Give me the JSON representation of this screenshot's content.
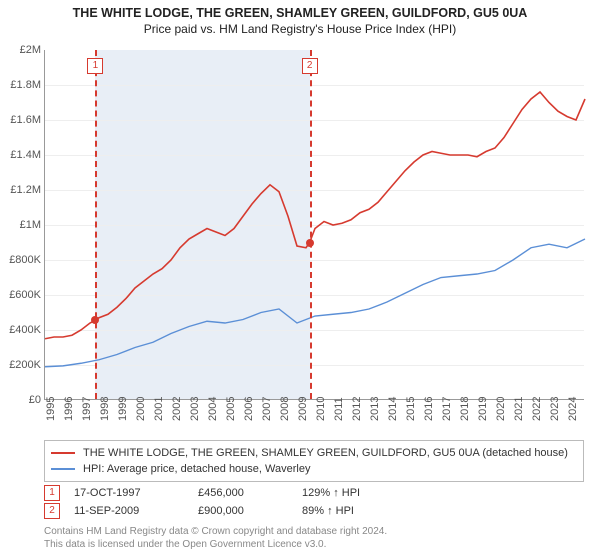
{
  "header": {
    "title_line1": "THE WHITE LODGE, THE GREEN, SHAMLEY GREEN, GUILDFORD, GU5 0UA",
    "title_line2": "Price paid vs. HM Land Registry's House Price Index (HPI)"
  },
  "chart": {
    "type": "line",
    "x_years": [
      1995,
      1996,
      1997,
      1998,
      1999,
      2000,
      2001,
      2002,
      2003,
      2004,
      2005,
      2006,
      2007,
      2008,
      2009,
      2010,
      2011,
      2012,
      2013,
      2014,
      2015,
      2016,
      2017,
      2018,
      2019,
      2020,
      2021,
      2022,
      2023,
      2024
    ],
    "xlim": [
      1995,
      2025
    ],
    "ylim": [
      0,
      2000000
    ],
    "ytick_step": 200000,
    "ytick_labels": [
      "£0",
      "£200K",
      "£400K",
      "£600K",
      "£800K",
      "£1M",
      "£1.2M",
      "£1.4M",
      "£1.6M",
      "£1.8M",
      "£2M"
    ],
    "grid_color": "#eeeeee",
    "axis_color": "#999999",
    "background_color": "#ffffff",
    "shade_color": "#e8eef6",
    "title_fontsize": 12.5,
    "label_fontsize": 11,
    "shaded_ranges": [
      [
        1997.8,
        2009.7
      ]
    ],
    "series": [
      {
        "id": "property",
        "label": "THE WHITE LODGE, THE GREEN, SHAMLEY GREEN, GUILDFORD, GU5 0UA (detached house)",
        "color": "#d63a2f",
        "line_width": 1.6,
        "x": [
          1995.0,
          1995.5,
          1996.0,
          1996.5,
          1997.0,
          1997.5,
          1997.8,
          1998.0,
          1998.5,
          1999.0,
          1999.5,
          2000.0,
          2000.5,
          2001.0,
          2001.5,
          2002.0,
          2002.5,
          2003.0,
          2003.5,
          2004.0,
          2004.5,
          2005.0,
          2005.5,
          2006.0,
          2006.5,
          2007.0,
          2007.5,
          2008.0,
          2008.5,
          2009.0,
          2009.5,
          2009.7,
          2010.0,
          2010.5,
          2011.0,
          2011.5,
          2012.0,
          2012.5,
          2013.0,
          2013.5,
          2014.0,
          2014.5,
          2015.0,
          2015.5,
          2016.0,
          2016.5,
          2017.0,
          2017.5,
          2018.0,
          2018.5,
          2019.0,
          2019.5,
          2020.0,
          2020.5,
          2021.0,
          2021.5,
          2022.0,
          2022.5,
          2023.0,
          2023.5,
          2024.0,
          2024.5,
          2025.0
        ],
        "y": [
          350000,
          360000,
          360000,
          370000,
          400000,
          440000,
          456000,
          470000,
          490000,
          530000,
          580000,
          640000,
          680000,
          720000,
          750000,
          800000,
          870000,
          920000,
          950000,
          980000,
          960000,
          940000,
          980000,
          1050000,
          1120000,
          1180000,
          1230000,
          1190000,
          1050000,
          880000,
          870000,
          900000,
          980000,
          1020000,
          1000000,
          1010000,
          1030000,
          1070000,
          1090000,
          1130000,
          1190000,
          1250000,
          1310000,
          1360000,
          1400000,
          1420000,
          1410000,
          1400000,
          1400000,
          1400000,
          1390000,
          1420000,
          1440000,
          1500000,
          1580000,
          1660000,
          1720000,
          1760000,
          1700000,
          1650000,
          1620000,
          1600000,
          1720000
        ]
      },
      {
        "id": "hpi",
        "label": "HPI: Average price, detached house, Waverley",
        "color": "#5b8fd6",
        "line_width": 1.4,
        "x": [
          1995.0,
          1996.0,
          1997.0,
          1998.0,
          1999.0,
          2000.0,
          2001.0,
          2002.0,
          2003.0,
          2004.0,
          2005.0,
          2006.0,
          2007.0,
          2008.0,
          2009.0,
          2010.0,
          2011.0,
          2012.0,
          2013.0,
          2014.0,
          2015.0,
          2016.0,
          2017.0,
          2018.0,
          2019.0,
          2020.0,
          2021.0,
          2022.0,
          2023.0,
          2024.0,
          2025.0
        ],
        "y": [
          190000,
          195000,
          210000,
          230000,
          260000,
          300000,
          330000,
          380000,
          420000,
          450000,
          440000,
          460000,
          500000,
          520000,
          440000,
          480000,
          490000,
          500000,
          520000,
          560000,
          610000,
          660000,
          700000,
          710000,
          720000,
          740000,
          800000,
          870000,
          890000,
          870000,
          920000
        ]
      }
    ],
    "reference_lines": [
      {
        "x": 1997.8,
        "label": "1",
        "color": "#d63a2f",
        "dash": "4 3",
        "dot_y": 456000
      },
      {
        "x": 2009.7,
        "label": "2",
        "color": "#d63a2f",
        "dash": "4 3",
        "dot_y": 900000
      }
    ]
  },
  "legend": {
    "items": [
      {
        "color": "#d63a2f",
        "label": "THE WHITE LODGE, THE GREEN, SHAMLEY GREEN, GUILDFORD, GU5 0UA (detached house)"
      },
      {
        "color": "#5b8fd6",
        "label": "HPI: Average price, detached house, Waverley"
      }
    ]
  },
  "sales": [
    {
      "marker": "1",
      "date": "17-OCT-1997",
      "price": "£456,000",
      "pct": "129% ↑ HPI"
    },
    {
      "marker": "2",
      "date": "11-SEP-2009",
      "price": "£900,000",
      "pct": "89% ↑ HPI"
    }
  ],
  "attribution": {
    "line1": "Contains HM Land Registry data © Crown copyright and database right 2024.",
    "line2": "This data is licensed under the Open Government Licence v3.0."
  }
}
